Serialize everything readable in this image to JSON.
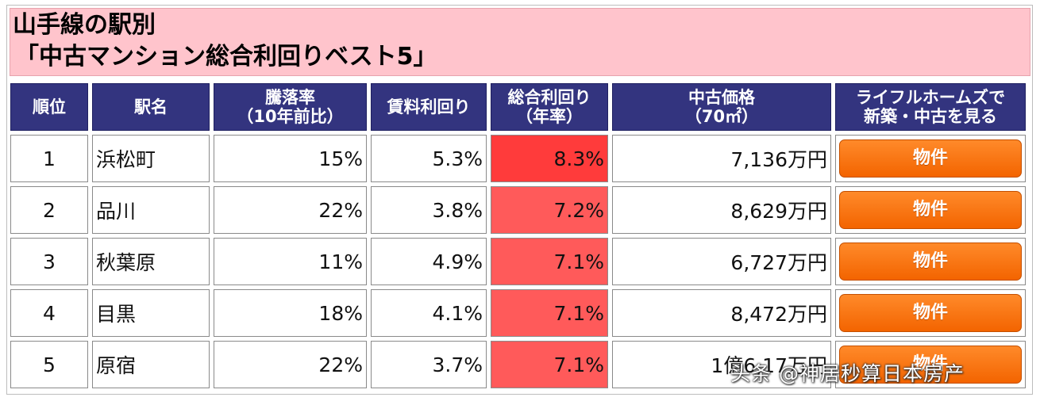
{
  "title": {
    "line1": "山手線の駅別",
    "line2": "「中古マンション総合利回りベスト5」"
  },
  "headers": {
    "rank": "順位",
    "station": "駅名",
    "fall_line1": "騰落率",
    "fall_line2": "（10年前比）",
    "rental": "賃料利回り",
    "total_line1": "総合利回り",
    "total_line2": "（年率）",
    "price_line1": "中古価格",
    "price_line2": "（70㎡）",
    "link_line1": "ライフルホームズで",
    "link_line2": "新築・中古を見る"
  },
  "rows": [
    {
      "rank": "1",
      "station": "浜松町",
      "fall": "15%",
      "rental": "5.3%",
      "total": "8.3%",
      "price": "7,136万円",
      "button": "物件"
    },
    {
      "rank": "2",
      "station": "品川",
      "fall": "22%",
      "rental": "3.8%",
      "total": "7.2%",
      "price": "8,629万円",
      "button": "物件"
    },
    {
      "rank": "3",
      "station": "秋葉原",
      "fall": "11%",
      "rental": "4.9%",
      "total": "7.1%",
      "price": "6,727万円",
      "button": "物件"
    },
    {
      "rank": "4",
      "station": "目黒",
      "fall": "18%",
      "rental": "4.1%",
      "total": "7.1%",
      "price": "8,472万円",
      "button": "物件"
    },
    {
      "rank": "5",
      "station": "原宿",
      "fall": "22%",
      "rental": "3.7%",
      "total": "7.1%",
      "price": "1億6,17万円",
      "button": "物件"
    }
  ],
  "colors": {
    "header_bg": "#33347f",
    "title_bg": "#ffc4cc",
    "highlight_top": "#ff3b3b",
    "highlight": "#ff5a5a",
    "button": "#f36400"
  },
  "watermark": "头条 @神居秒算日本房产"
}
